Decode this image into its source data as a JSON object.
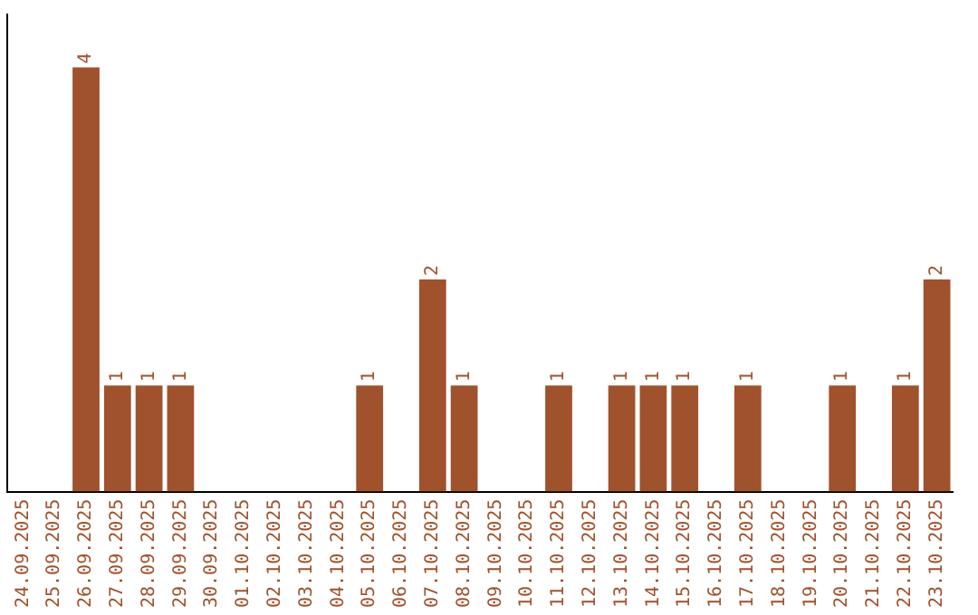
{
  "chart_data": {
    "type": "bar",
    "categories": [
      "24.09.2025",
      "25.09.2025",
      "26.09.2025",
      "27.09.2025",
      "28.09.2025",
      "29.09.2025",
      "30.09.2025",
      "01.10.2025",
      "02.10.2025",
      "03.10.2025",
      "04.10.2025",
      "05.10.2025",
      "06.10.2025",
      "07.10.2025",
      "08.10.2025",
      "09.10.2025",
      "10.10.2025",
      "11.10.2025",
      "12.10.2025",
      "13.10.2025",
      "14.10.2025",
      "15.10.2025",
      "16.10.2025",
      "17.10.2025",
      "18.10.2025",
      "19.10.2025",
      "20.10.2025",
      "21.10.2025",
      "22.10.2025",
      "23.10.2025"
    ],
    "values": [
      null,
      null,
      4,
      1,
      1,
      1,
      null,
      null,
      null,
      null,
      null,
      1,
      null,
      2,
      1,
      null,
      null,
      1,
      null,
      1,
      1,
      1,
      null,
      1,
      null,
      null,
      1,
      null,
      1,
      2
    ],
    "color": "#a0522d",
    "data_labels": true,
    "grid": false,
    "legend": false,
    "tick_labels": "x"
  }
}
